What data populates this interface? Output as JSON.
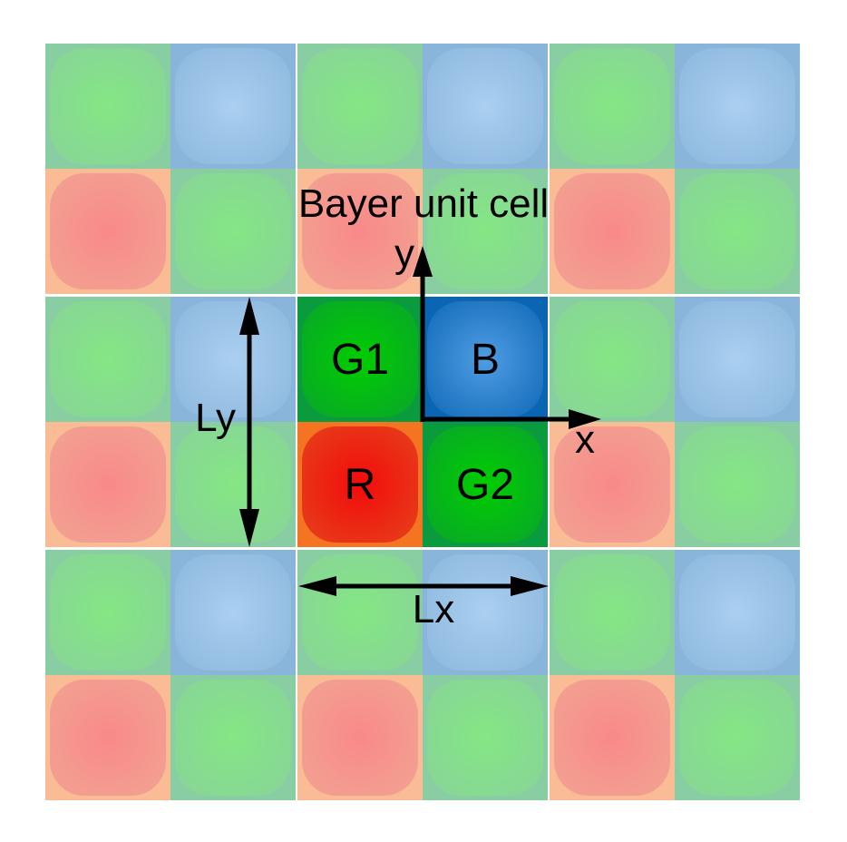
{
  "title": "Bayer unit cell",
  "axes": {
    "x_label": "x",
    "y_label": "y"
  },
  "dimensions": {
    "horizontal_label": "Lx",
    "vertical_label": "Ly"
  },
  "unit_cell": {
    "labels": [
      "G1",
      "B",
      "R",
      "G2"
    ]
  },
  "grid": {
    "blocks_across": 3,
    "blocks_down": 3,
    "block_pattern": [
      "green",
      "blue",
      "red",
      "green"
    ],
    "center_block_index": 4
  },
  "colors": {
    "green": {
      "frame": "#0b9b3f",
      "center": "#00cd00",
      "edge": "#0aa42c"
    },
    "blue": {
      "frame": "#0a65b3",
      "center": "#4f9de2",
      "edge": "#0e68b6"
    },
    "red": {
      "frame": "#f47421",
      "center": "#f30b0b",
      "edge": "#e4431c"
    },
    "text": "#000000",
    "background": "#ffffff",
    "arrow": "#000000"
  }
}
